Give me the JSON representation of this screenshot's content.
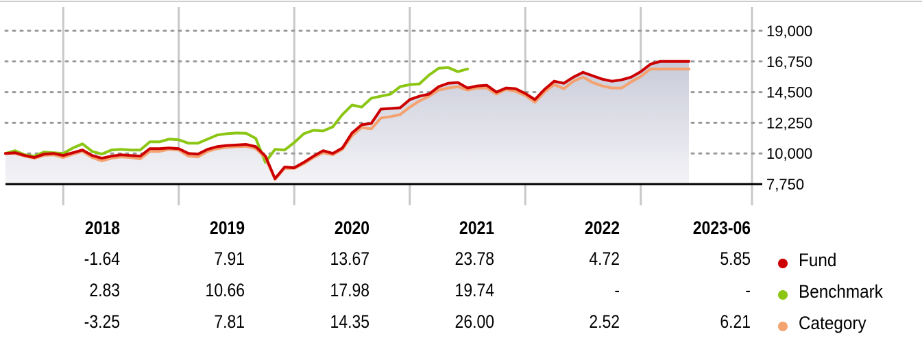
{
  "chart_data": {
    "type": "line",
    "x": [
      "2017-07",
      "2017-08",
      "2017-09",
      "2017-10",
      "2017-11",
      "2017-12",
      "2018-01",
      "2018-02",
      "2018-03",
      "2018-04",
      "2018-05",
      "2018-06",
      "2018-07",
      "2018-08",
      "2018-09",
      "2018-10",
      "2018-11",
      "2018-12",
      "2019-01",
      "2019-02",
      "2019-03",
      "2019-04",
      "2019-05",
      "2019-06",
      "2019-07",
      "2019-08",
      "2019-09",
      "2019-10",
      "2019-11",
      "2019-12",
      "2020-01",
      "2020-02",
      "2020-03",
      "2020-04",
      "2020-05",
      "2020-06",
      "2020-07",
      "2020-08",
      "2020-09",
      "2020-10",
      "2020-11",
      "2020-12",
      "2021-01",
      "2021-02",
      "2021-03",
      "2021-04",
      "2021-05",
      "2021-06",
      "2021-07",
      "2021-08",
      "2021-09",
      "2021-10",
      "2021-11",
      "2021-12",
      "2022-01",
      "2022-02",
      "2022-03",
      "2022-04",
      "2022-05",
      "2022-06",
      "2022-07",
      "2022-08",
      "2022-09",
      "2022-10",
      "2022-11",
      "2022-12",
      "2023-01",
      "2023-02",
      "2023-03",
      "2023-04",
      "2023-05",
      "2023-06"
    ],
    "series": [
      {
        "name": "Fund",
        "color": "#cc0000",
        "values": [
          10000,
          10050,
          9850,
          9700,
          9950,
          10000,
          9850,
          10050,
          10250,
          9850,
          9650,
          9800,
          9900,
          9850,
          9800,
          10350,
          10350,
          10400,
          10350,
          10000,
          9950,
          10300,
          10500,
          10580,
          10620,
          10660,
          10500,
          9800,
          8150,
          9000,
          8950,
          9350,
          9800,
          10200,
          10000,
          10400,
          11500,
          12100,
          12200,
          13250,
          13300,
          13350,
          13950,
          14200,
          14350,
          14900,
          15150,
          15200,
          14800,
          14950,
          15000,
          14500,
          14800,
          14750,
          14400,
          13950,
          14700,
          15300,
          15150,
          15600,
          15950,
          15700,
          15450,
          15300,
          15400,
          15600,
          16000,
          16550,
          16750,
          16750,
          16750,
          16750
        ]
      },
      {
        "name": "Benchmark",
        "color": "#8cc614",
        "values": [
          10000,
          10200,
          9900,
          9800,
          10100,
          10050,
          10000,
          10400,
          10700,
          10150,
          9950,
          10250,
          10300,
          10250,
          10250,
          10850,
          10850,
          11050,
          11000,
          10750,
          10750,
          11050,
          11350,
          11450,
          11500,
          11480,
          11100,
          9350,
          10300,
          10250,
          10800,
          11450,
          11700,
          11650,
          11950,
          12850,
          13550,
          13400,
          14050,
          14200,
          14350,
          14900,
          15050,
          15100,
          15750,
          16250,
          16300,
          16000,
          16200,
          null,
          null,
          null,
          null,
          null,
          null,
          null,
          null,
          null,
          null,
          null,
          null,
          null,
          null,
          null,
          null,
          null,
          null,
          null,
          null,
          null,
          null,
          null
        ]
      },
      {
        "name": "Category",
        "color": "#f4a26f",
        "values": [
          10000,
          10000,
          9800,
          9650,
          9850,
          9900,
          9700,
          9950,
          10150,
          9700,
          9450,
          9650,
          9750,
          9700,
          9600,
          10150,
          10150,
          10300,
          10250,
          9800,
          9750,
          10150,
          10350,
          10450,
          10500,
          10520,
          10350,
          9700,
          8100,
          8900,
          8900,
          9250,
          9700,
          10050,
          9900,
          10300,
          11300,
          11900,
          11800,
          12600,
          12700,
          12850,
          13400,
          13850,
          14200,
          14650,
          14800,
          14900,
          14650,
          14800,
          14800,
          14350,
          14700,
          14550,
          14250,
          13750,
          14500,
          15050,
          14750,
          15300,
          15600,
          15200,
          14950,
          14800,
          14800,
          15250,
          15650,
          16200,
          16200,
          16200,
          16200,
          16200
        ]
      }
    ],
    "y_ticks": [
      "19,000",
      "16,750",
      "14,500",
      "12,250",
      "10,000",
      "7,750"
    ],
    "ylim": [
      7750,
      19000
    ],
    "grid": true,
    "legend_position": "bottom-right"
  },
  "table": {
    "years": [
      "2018",
      "2019",
      "2020",
      "2021",
      "2022",
      "2023-06"
    ],
    "rows": [
      {
        "label": "Fund",
        "color": "#cc0000",
        "values": [
          "-1.64",
          "7.91",
          "13.67",
          "23.78",
          "4.72",
          "5.85"
        ]
      },
      {
        "label": "Benchmark",
        "color": "#8cc614",
        "values": [
          "2.83",
          "10.66",
          "17.98",
          "19.74",
          "-",
          "-"
        ]
      },
      {
        "label": "Category",
        "color": "#f4a26f",
        "values": [
          "-3.25",
          "7.81",
          "14.35",
          "26.00",
          "2.52",
          "6.21"
        ]
      }
    ]
  }
}
